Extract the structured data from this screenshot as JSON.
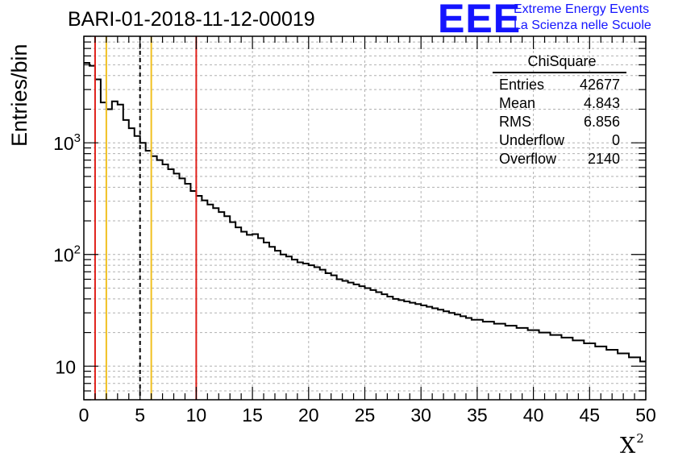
{
  "title": "BARI-01-2018-11-12-00019",
  "logo": {
    "text": "EEE",
    "line1": "Extreme Energy Events",
    "line2": "La Scienza nelle Scuole",
    "color": "#1414ff"
  },
  "stats_box": {
    "name": "ChiSquare",
    "rows": [
      {
        "label": "Entries",
        "value": "42677"
      },
      {
        "label": "Mean",
        "value": "4.843"
      },
      {
        "label": "RMS",
        "value": "6.856"
      },
      {
        "label": "Underflow",
        "value": "0"
      },
      {
        "label": "Overflow",
        "value": "2140"
      }
    ]
  },
  "chart_data": {
    "type": "histogram",
    "title": "BARI-01-2018-11-12-00019",
    "xlabel": "X",
    "xlabel_superscript": "2",
    "ylabel": "Entries/bin",
    "xlim": [
      0,
      50
    ],
    "ylim": [
      5,
      9000
    ],
    "yscale": "log",
    "grid": true,
    "x_ticks": [
      "0",
      "5",
      "10",
      "15",
      "20",
      "25",
      "30",
      "35",
      "40",
      "45",
      "50"
    ],
    "y_ticks": [
      {
        "value": 10,
        "label": "10"
      },
      {
        "value": 100,
        "label": "10",
        "exp": "2"
      },
      {
        "value": 1000,
        "label": "10",
        "exp": "3"
      }
    ],
    "bin_width": 0.5,
    "bin_start": 0,
    "values": [
      5200,
      4900,
      3700,
      2300,
      2000,
      2350,
      2200,
      1600,
      1350,
      1150,
      1000,
      850,
      760,
      700,
      640,
      580,
      530,
      480,
      430,
      370,
      335,
      305,
      280,
      260,
      240,
      220,
      195,
      175,
      160,
      150,
      152,
      140,
      128,
      117,
      108,
      100,
      96,
      90,
      85,
      83,
      80,
      77,
      73,
      68,
      65,
      60,
      58,
      56,
      54,
      52,
      50,
      48,
      46,
      44,
      42,
      40,
      39,
      38,
      37,
      36,
      35,
      34,
      33,
      32,
      31,
      30,
      29,
      28,
      27,
      26,
      26,
      25,
      25,
      24,
      24,
      23,
      23,
      22,
      22,
      21,
      21,
      20,
      20,
      19,
      19,
      18,
      18,
      17,
      17,
      16,
      16,
      15,
      15,
      14,
      14,
      13,
      13,
      12,
      12,
      11
    ],
    "vertical_lines": [
      {
        "x": 1,
        "color": "#e0201a",
        "style": "solid"
      },
      {
        "x": 2,
        "color": "#f0c020",
        "style": "solid"
      },
      {
        "x": 5,
        "color": "#000000",
        "style": "dashed"
      },
      {
        "x": 6,
        "color": "#f0c020",
        "style": "solid"
      },
      {
        "x": 10,
        "color": "#e0201a",
        "style": "solid"
      }
    ]
  }
}
